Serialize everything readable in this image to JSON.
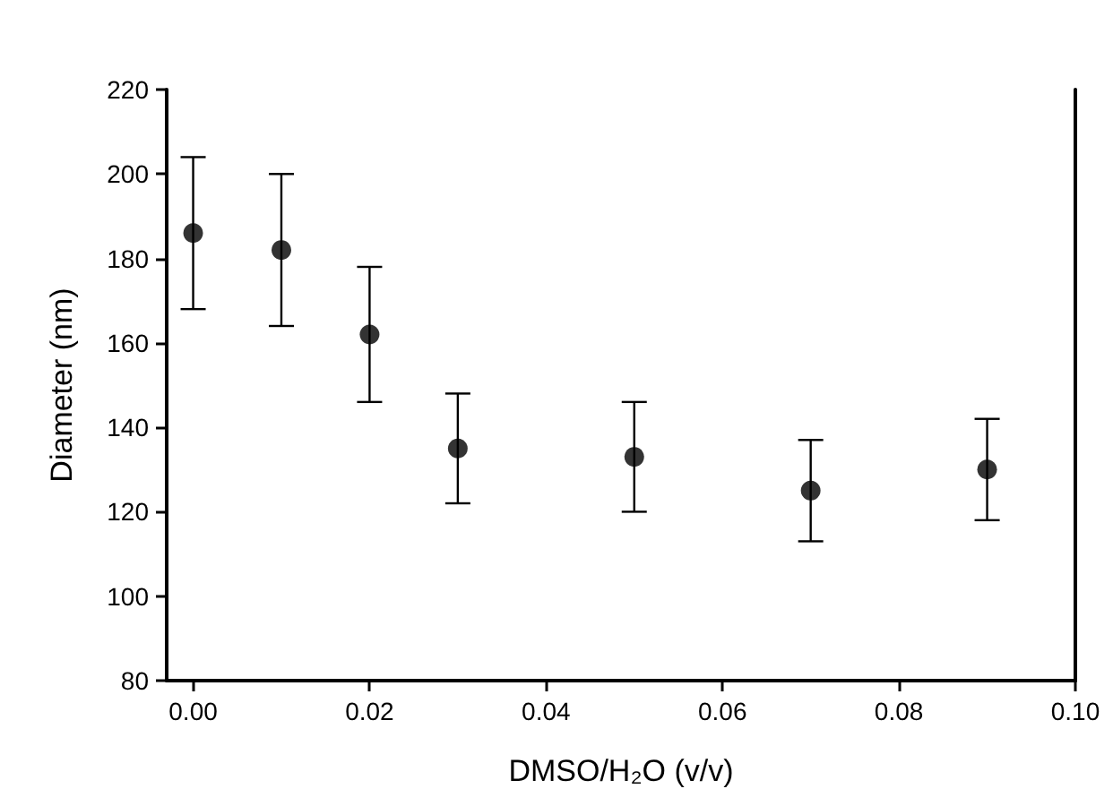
{
  "chart_data": {
    "type": "scatter",
    "xlabel": "DMSO/H₂O (v/v)",
    "ylabel": "Diameter (nm)",
    "x": [
      0,
      0.01,
      0.02,
      0.03,
      0.05,
      0.07,
      0.09
    ],
    "series": [
      {
        "color": "#000000",
        "values": [
          186,
          182,
          162,
          135,
          133,
          125,
          130
        ],
        "errors": [
          18,
          18,
          16,
          13,
          13,
          12,
          12
        ]
      }
    ],
    "xlim": [
      -0.003,
      0.1
    ],
    "xticks": [
      {
        "value": 0,
        "label": "0.00"
      },
      {
        "value": 0.02,
        "label": "0.02"
      },
      {
        "value": 0.04,
        "label": "0.04"
      },
      {
        "value": 0.06,
        "label": "0.06"
      },
      {
        "value": 0.08,
        "label": "0.08"
      },
      {
        "value": 0.1,
        "label": "0.10"
      }
    ],
    "ylim": [
      80,
      220
    ],
    "yticks": [
      80,
      100,
      120,
      140,
      160,
      180,
      200,
      220
    ],
    "grid": false,
    "marker": "circle"
  }
}
